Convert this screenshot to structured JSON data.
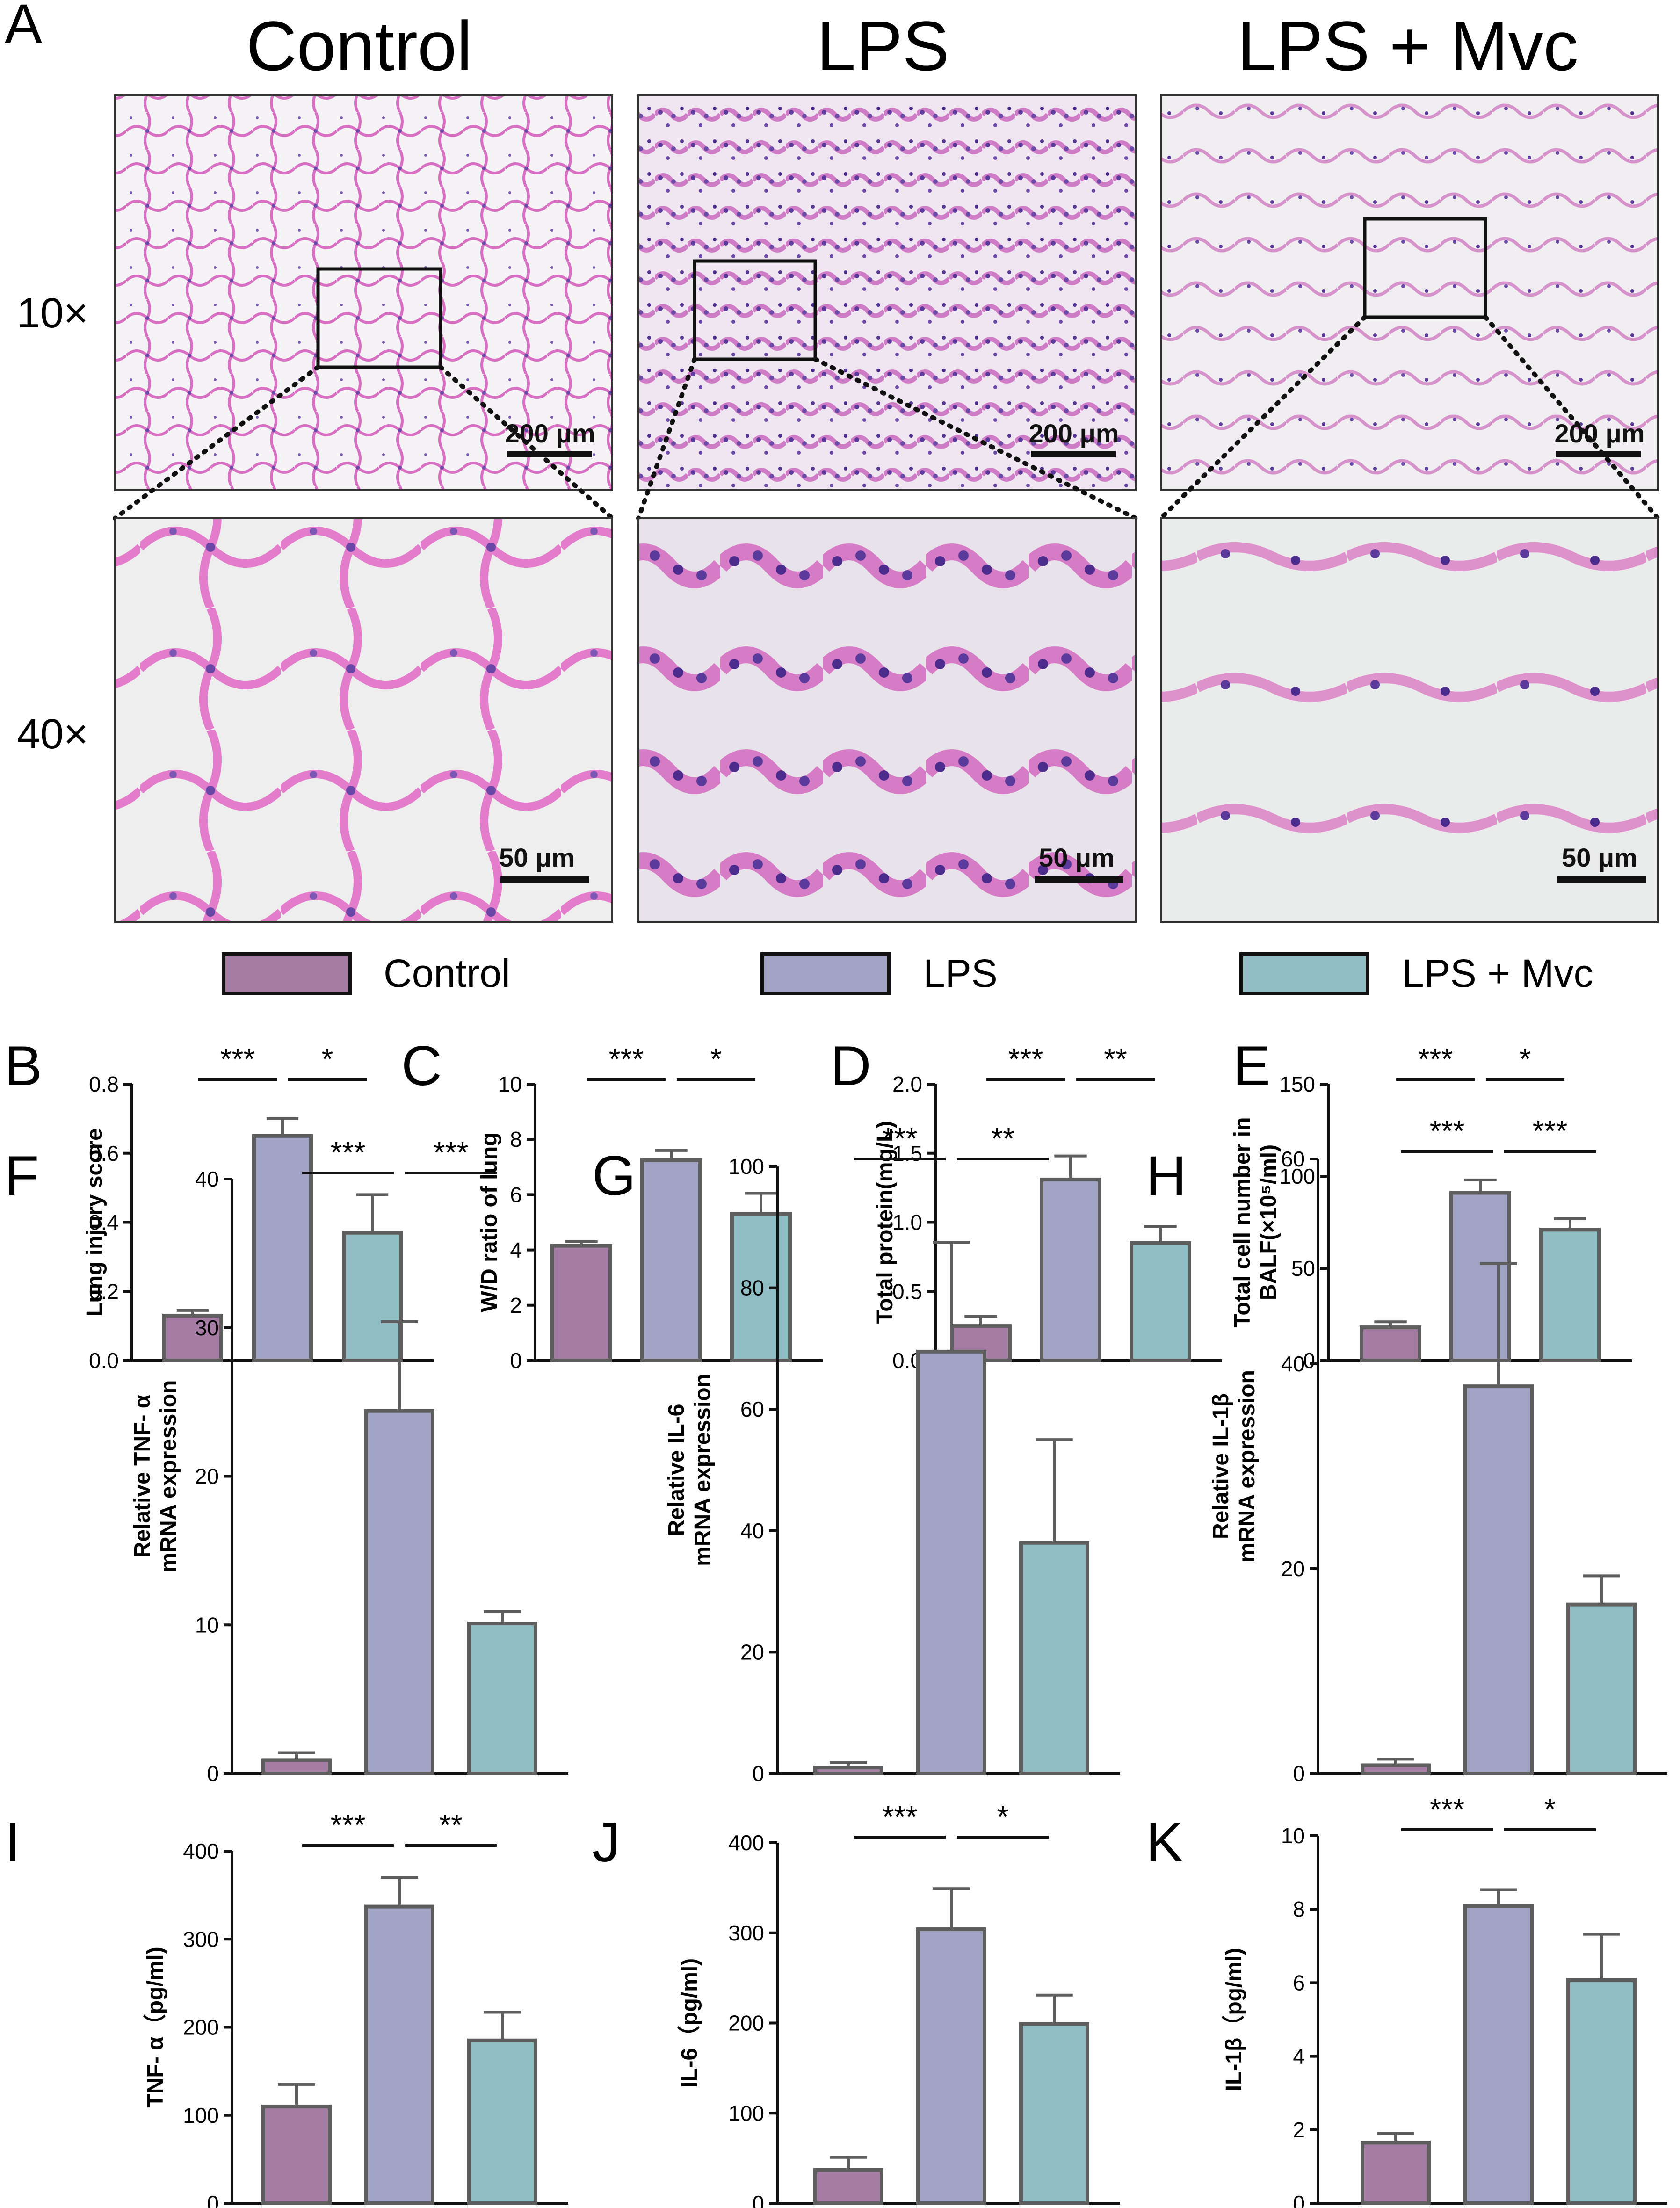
{
  "panel_letters": [
    "A",
    "B",
    "C",
    "D",
    "E",
    "F",
    "G",
    "H",
    "I",
    "J",
    "K"
  ],
  "histology": {
    "columns": [
      "Control",
      "LPS",
      "LPS + Mvc"
    ],
    "rows": [
      "10×",
      "40×"
    ],
    "scale_bars": {
      "row1": "200 μm",
      "row2": "50 μm"
    }
  },
  "legend": [
    "Control",
    "LPS",
    "LPS + Mvc"
  ],
  "colors": {
    "control": "#a47ca4",
    "lps": "#a2a4c6",
    "mvc": "#90bcc4",
    "outline": "#5e5e5e",
    "tissue_pink": "#e7a6d4",
    "nuclei": "#6b4aa8",
    "background_grey": "#ebebeb"
  },
  "chart_data": [
    {
      "id": "B",
      "type": "bar",
      "categories": [
        "Control",
        "LPS",
        "LPS + Mvc"
      ],
      "values": [
        0.13,
        0.65,
        0.37
      ],
      "errors": [
        0.015,
        0.05,
        0.11
      ],
      "ylabel": [
        "Lung injury score"
      ],
      "ylim": [
        0,
        0.8
      ],
      "yticks": [
        "0.0",
        "0.2",
        "0.4",
        "0.6",
        "0.8"
      ],
      "sig": [
        "***",
        "*"
      ]
    },
    {
      "id": "C",
      "type": "bar",
      "categories": [
        "Control",
        "LPS",
        "LPS + Mvc"
      ],
      "values": [
        4.15,
        7.25,
        5.3
      ],
      "errors": [
        0.15,
        0.35,
        0.75
      ],
      "ylabel": [
        "W/D ratio of lung"
      ],
      "ylim": [
        0,
        10
      ],
      "yticks": [
        "0",
        "2",
        "4",
        "6",
        "8",
        "10"
      ],
      "sig": [
        "***",
        "*"
      ]
    },
    {
      "id": "D",
      "type": "bar",
      "categories": [
        "Control",
        "LPS",
        "LPS + Mvc"
      ],
      "values": [
        0.25,
        1.31,
        0.85
      ],
      "errors": [
        0.07,
        0.17,
        0.12
      ],
      "ylabel": [
        "Total protein(mg/L)"
      ],
      "ylim": [
        0,
        2
      ],
      "yticks": [
        "0.0",
        "0.5",
        "1.0",
        "1.5",
        "2.0"
      ],
      "sig": [
        "***",
        "**"
      ]
    },
    {
      "id": "E",
      "type": "bar",
      "categories": [
        "Control",
        "LPS",
        "LPS + Mvc"
      ],
      "values": [
        18,
        91,
        71
      ],
      "errors": [
        3,
        7,
        6
      ],
      "ylabel": [
        "Total cell number in",
        "BALF(×10⁵/ml)"
      ],
      "ylim": [
        0,
        150
      ],
      "yticks": [
        "0",
        "50",
        "100",
        "150"
      ],
      "sig": [
        "***",
        "*"
      ]
    },
    {
      "id": "F",
      "type": "bar",
      "categories": [
        "Control",
        "LPS",
        "LPS + Mvc"
      ],
      "values": [
        0.9,
        24.4,
        10.1
      ],
      "errors": [
        0.5,
        6,
        0.8
      ],
      "ylabel": [
        "Relative TNF- α",
        "mRNA expression"
      ],
      "ylim": [
        0,
        40
      ],
      "yticks": [
        "0",
        "10",
        "20",
        "30",
        "40"
      ],
      "sig": [
        "***",
        "***"
      ]
    },
    {
      "id": "G",
      "type": "bar",
      "categories": [
        "Control",
        "LPS",
        "LPS + Mvc"
      ],
      "values": [
        1,
        69.5,
        38
      ],
      "errors": [
        0.8,
        18,
        17
      ],
      "ylabel": [
        "Relative IL-6",
        "mRNA expression"
      ],
      "ylim": [
        0,
        100
      ],
      "yticks": [
        "0",
        "20",
        "40",
        "60",
        "80",
        "100"
      ],
      "sig": [
        "***",
        "**"
      ]
    },
    {
      "id": "H",
      "type": "bar",
      "categories": [
        "Control",
        "LPS",
        "LPS + Mvc"
      ],
      "values": [
        0.8,
        37.8,
        16.5
      ],
      "errors": [
        0.6,
        12,
        2.8
      ],
      "ylabel": [
        "Relative IL-1β",
        "mRNA expression"
      ],
      "ylim": [
        0,
        60
      ],
      "yticks": [
        "0",
        "20",
        "40",
        "60"
      ],
      "sig": [
        "***",
        "***"
      ]
    },
    {
      "id": "I",
      "type": "bar",
      "categories": [
        "Control",
        "LPS",
        "LPS + Mvc"
      ],
      "values": [
        110,
        337,
        185
      ],
      "errors": [
        25,
        33,
        32
      ],
      "ylabel": [
        "TNF- α（pg/ml)"
      ],
      "ylim": [
        0,
        400
      ],
      "yticks": [
        "0",
        "100",
        "200",
        "300",
        "400"
      ],
      "sig": [
        "***",
        "**"
      ]
    },
    {
      "id": "J",
      "type": "bar",
      "categories": [
        "Control",
        "LPS",
        "LPS + Mvc"
      ],
      "values": [
        37,
        304,
        199
      ],
      "errors": [
        14,
        45,
        32
      ],
      "ylabel": [
        "IL-6（pg/ml)"
      ],
      "ylim": [
        0,
        400
      ],
      "yticks": [
        "0",
        "100",
        "200",
        "300",
        "400"
      ],
      "sig": [
        "***",
        "*"
      ]
    },
    {
      "id": "K",
      "type": "bar",
      "categories": [
        "Control",
        "LPS",
        "LPS + Mvc"
      ],
      "values": [
        1.65,
        8.08,
        6.07
      ],
      "errors": [
        0.25,
        0.45,
        1.25
      ],
      "ylabel": [
        "IL-1β（pg/ml)"
      ],
      "ylim": [
        0,
        10
      ],
      "yticks": [
        "0",
        "2",
        "4",
        "6",
        "8",
        "10"
      ],
      "sig": [
        "***",
        "*"
      ]
    }
  ]
}
